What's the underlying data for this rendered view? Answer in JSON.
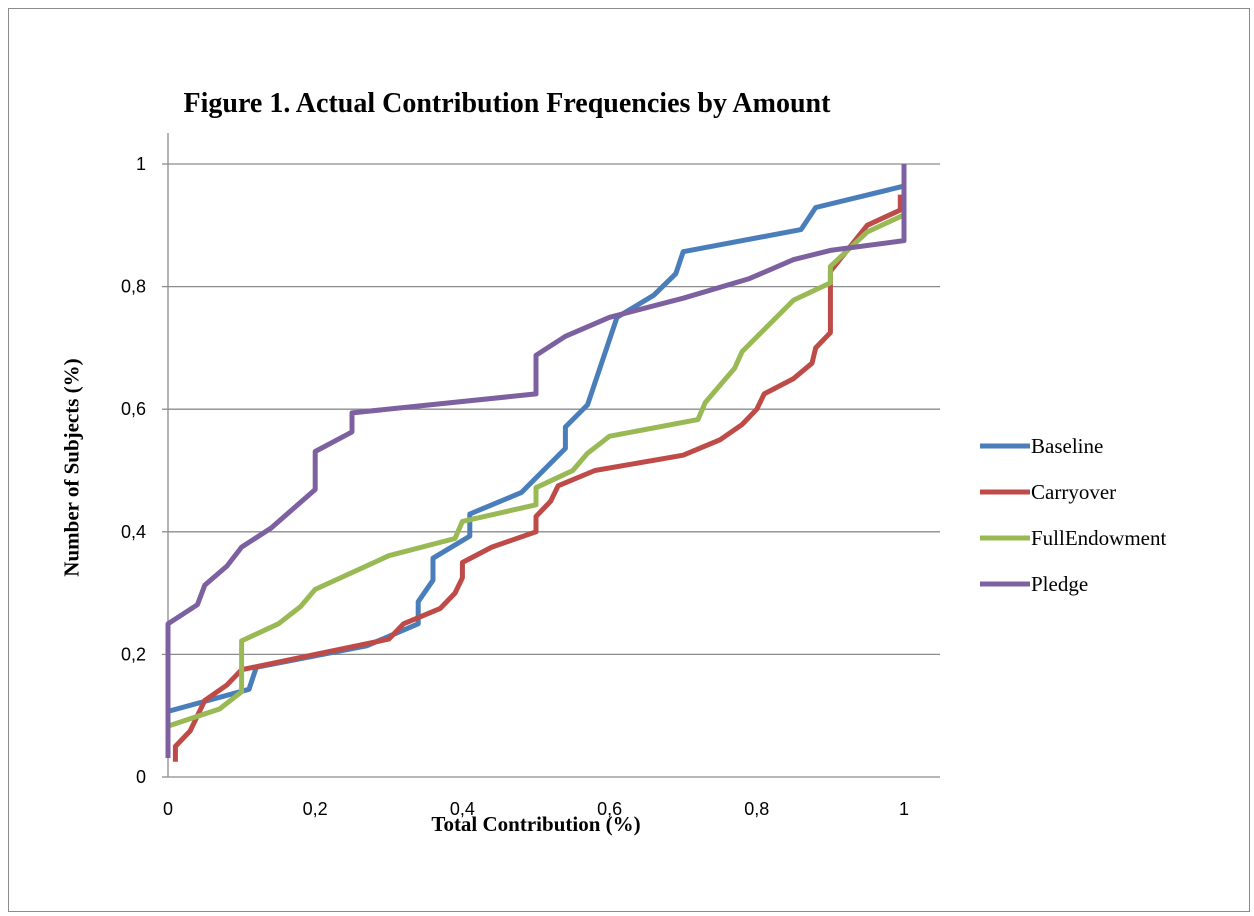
{
  "chart_data": {
    "type": "line",
    "title": "Figure 1. Actual Contribution Frequencies by Amount",
    "xlabel": "Total Contribution  (%)",
    "ylabel": "Number of Subjects (%)",
    "xlim": [
      0,
      1
    ],
    "ylim": [
      0,
      1
    ],
    "x_ticks": [
      "0",
      "0,2",
      "0,4",
      "0,6",
      "0,8",
      "1"
    ],
    "y_ticks": [
      "0",
      "0,2",
      "0,4",
      "0,6",
      "0,8",
      "1"
    ],
    "grid": "horizontal",
    "legend_position": "right",
    "series": [
      {
        "name": "Baseline",
        "color": "#4a7ebb",
        "points": [
          [
            0,
            0.107
          ],
          [
            0.11,
            0.143
          ],
          [
            0.12,
            0.179
          ],
          [
            0.27,
            0.214
          ],
          [
            0.34,
            0.25
          ],
          [
            0.34,
            0.286
          ],
          [
            0.36,
            0.321
          ],
          [
            0.36,
            0.357
          ],
          [
            0.41,
            0.393
          ],
          [
            0.41,
            0.429
          ],
          [
            0.48,
            0.464
          ],
          [
            0.54,
            0.536
          ],
          [
            0.54,
            0.571
          ],
          [
            0.57,
            0.607
          ],
          [
            0.61,
            0.75
          ],
          [
            0.66,
            0.786
          ],
          [
            0.69,
            0.821
          ],
          [
            0.7,
            0.857
          ],
          [
            0.86,
            0.893
          ],
          [
            0.88,
            0.929
          ],
          [
            1,
            0.964
          ]
        ]
      },
      {
        "name": "Carryover",
        "color": "#be4b48",
        "points": [
          [
            0.01,
            0.025
          ],
          [
            0.01,
            0.05
          ],
          [
            0.03,
            0.075
          ],
          [
            0.05,
            0.125
          ],
          [
            0.08,
            0.15
          ],
          [
            0.1,
            0.175
          ],
          [
            0.3,
            0.225
          ],
          [
            0.32,
            0.25
          ],
          [
            0.37,
            0.275
          ],
          [
            0.39,
            0.3
          ],
          [
            0.4,
            0.325
          ],
          [
            0.4,
            0.35
          ],
          [
            0.44,
            0.375
          ],
          [
            0.5,
            0.4
          ],
          [
            0.5,
            0.425
          ],
          [
            0.52,
            0.45
          ],
          [
            0.53,
            0.475
          ],
          [
            0.58,
            0.5
          ],
          [
            0.7,
            0.525
          ],
          [
            0.75,
            0.55
          ],
          [
            0.78,
            0.575
          ],
          [
            0.8,
            0.6
          ],
          [
            0.81,
            0.625
          ],
          [
            0.85,
            0.65
          ],
          [
            0.875,
            0.675
          ],
          [
            0.88,
            0.7
          ],
          [
            0.9,
            0.725
          ],
          [
            0.9,
            0.825
          ],
          [
            0.95,
            0.9
          ],
          [
            0.995,
            0.925
          ],
          [
            0.995,
            0.95
          ]
        ]
      },
      {
        "name": "FullEndowment",
        "color": "#98b954",
        "points": [
          [
            0,
            0.083
          ],
          [
            0.07,
            0.111
          ],
          [
            0.1,
            0.139
          ],
          [
            0.1,
            0.222
          ],
          [
            0.15,
            0.25
          ],
          [
            0.18,
            0.278
          ],
          [
            0.2,
            0.306
          ],
          [
            0.3,
            0.361
          ],
          [
            0.39,
            0.389
          ],
          [
            0.4,
            0.417
          ],
          [
            0.5,
            0.444
          ],
          [
            0.5,
            0.472
          ],
          [
            0.55,
            0.5
          ],
          [
            0.57,
            0.528
          ],
          [
            0.6,
            0.556
          ],
          [
            0.72,
            0.583
          ],
          [
            0.73,
            0.611
          ],
          [
            0.77,
            0.667
          ],
          [
            0.78,
            0.694
          ],
          [
            0.85,
            0.778
          ],
          [
            0.9,
            0.806
          ],
          [
            0.9,
            0.833
          ],
          [
            0.95,
            0.889
          ],
          [
            1,
            0.917
          ],
          [
            1,
            0.944
          ]
        ]
      },
      {
        "name": "Pledge",
        "color": "#7d60a0",
        "points": [
          [
            0,
            0.031
          ],
          [
            0,
            0.25
          ],
          [
            0.04,
            0.281
          ],
          [
            0.05,
            0.313
          ],
          [
            0.08,
            0.344
          ],
          [
            0.1,
            0.375
          ],
          [
            0.14,
            0.406
          ],
          [
            0.2,
            0.469
          ],
          [
            0.2,
            0.531
          ],
          [
            0.25,
            0.563
          ],
          [
            0.25,
            0.594
          ],
          [
            0.5,
            0.625
          ],
          [
            0.5,
            0.688
          ],
          [
            0.54,
            0.719
          ],
          [
            0.6,
            0.75
          ],
          [
            0.7,
            0.781
          ],
          [
            0.79,
            0.813
          ],
          [
            0.85,
            0.844
          ],
          [
            0.9,
            0.859
          ],
          [
            1,
            0.875
          ],
          [
            1,
            1.0
          ]
        ]
      }
    ]
  }
}
